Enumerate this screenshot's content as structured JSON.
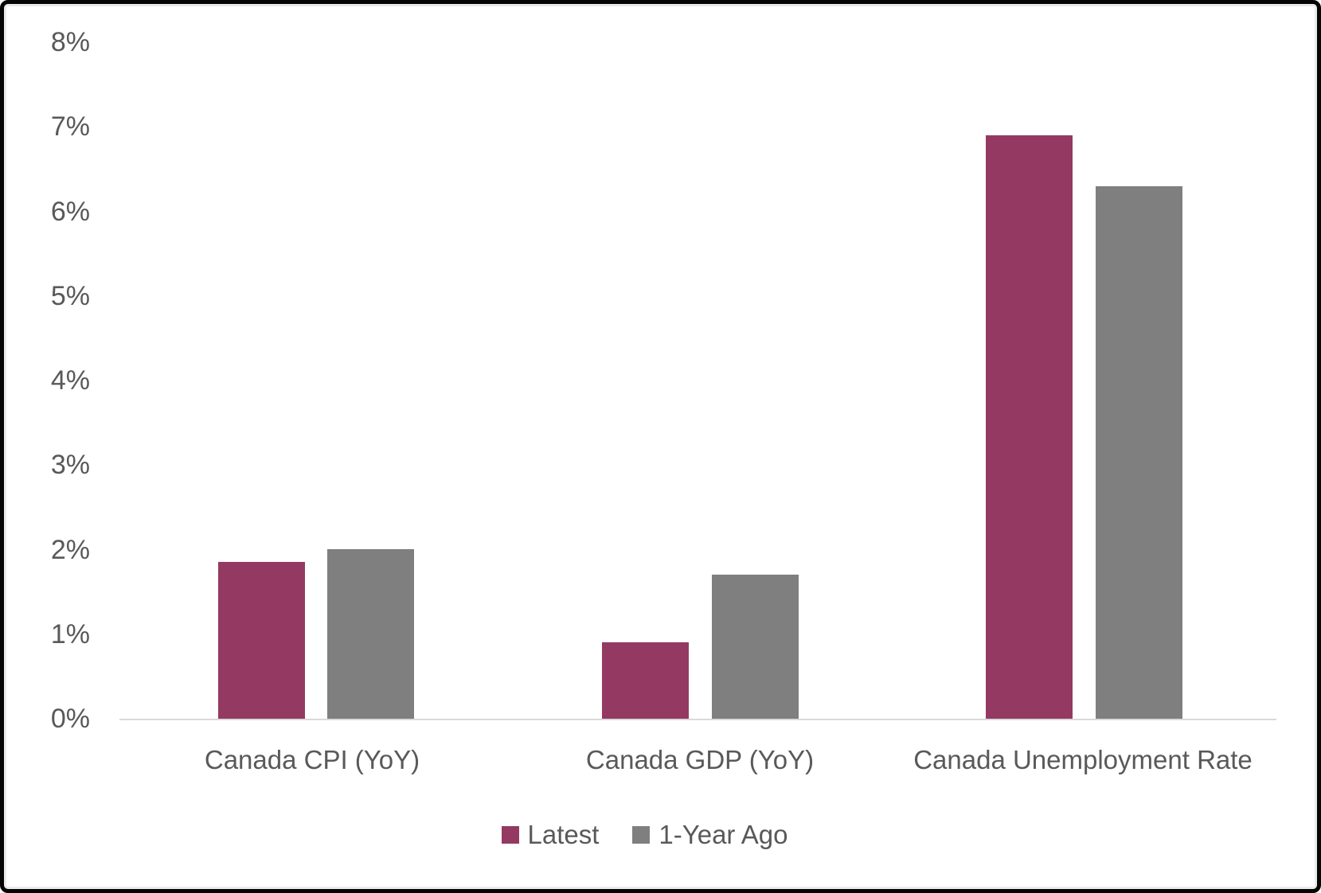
{
  "chart_data": {
    "type": "bar",
    "categories": [
      "Canada CPI (YoY)",
      "Canada GDP (YoY)",
      "Canada Unemployment Rate"
    ],
    "series": [
      {
        "name": "Latest",
        "color": "#943a62",
        "values": [
          1.85,
          0.9,
          6.9
        ]
      },
      {
        "name": "1-Year Ago",
        "color": "#7f7f7f",
        "values": [
          2.0,
          1.7,
          6.3
        ]
      }
    ],
    "title": "",
    "xlabel": "",
    "ylabel": "",
    "ylim": [
      0,
      8
    ],
    "ytick_step": 1,
    "yticks": [
      "0%",
      "1%",
      "2%",
      "3%",
      "4%",
      "5%",
      "6%",
      "7%",
      "8%"
    ],
    "grid": false,
    "legend_position": "bottom-center",
    "colors": {
      "axis_line": "#d9d9d9",
      "text": "#595959",
      "background": "#ffffff",
      "frame_border": "#050505"
    }
  }
}
